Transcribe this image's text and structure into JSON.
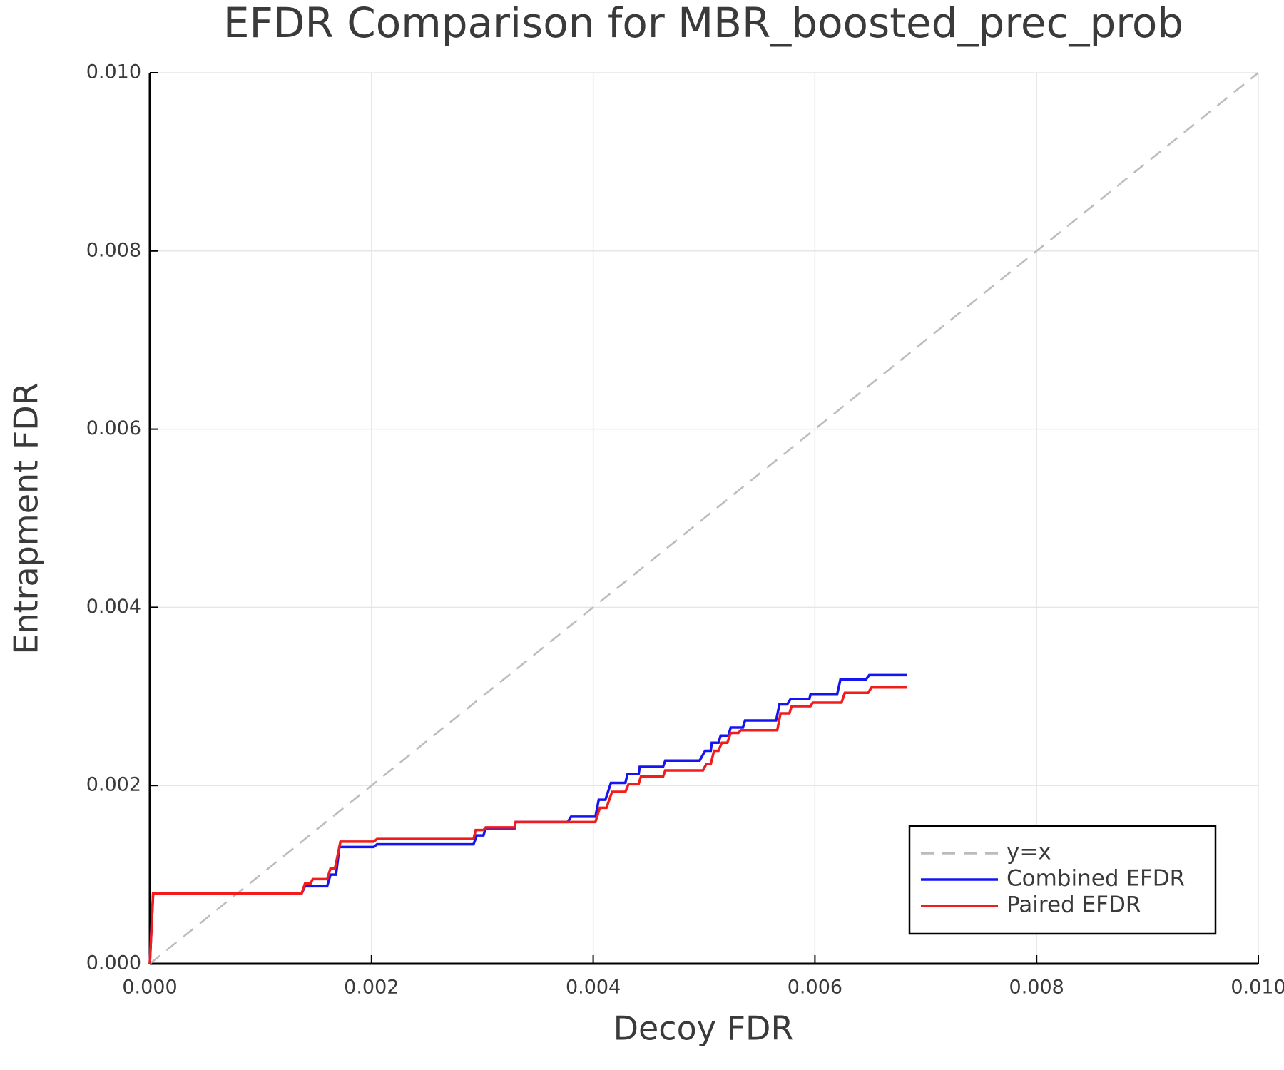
{
  "chart_data": {
    "type": "line",
    "title": "EFDR Comparison for MBR_boosted_prec_prob",
    "xlabel": "Decoy FDR",
    "ylabel": "Entrapment FDR",
    "xlim": [
      0,
      0.01
    ],
    "ylim": [
      0,
      0.01
    ],
    "xticks": [
      {
        "value": 0,
        "label": "0.000"
      },
      0.002,
      0.004,
      0.006,
      0.008,
      {
        "value": 0.01,
        "label": "0.010"
      }
    ],
    "yticks": [
      {
        "value": 0,
        "label": "0.000"
      },
      0.002,
      0.004,
      0.006,
      0.008,
      {
        "value": 0.01,
        "label": "0.010"
      }
    ],
    "grid": true,
    "legend": "lower right",
    "series": [
      {
        "name": "y=x",
        "color": "#bbbbbb",
        "linestyle": "dashed",
        "x": [
          0,
          0.01
        ],
        "values": [
          0,
          0.01
        ]
      },
      {
        "name": "Combined EFDR",
        "color": "#1515f2",
        "linestyle": "solid",
        "x": [
          0,
          3e-05,
          0.00137,
          0.0014,
          0.0016,
          0.00163,
          0.00168,
          0.00171,
          0.00202,
          0.00205,
          0.00292,
          0.00295,
          0.00301,
          0.00303,
          0.00329,
          0.0033,
          0.00377,
          0.0038,
          0.00402,
          0.00405,
          0.00411,
          0.00416,
          0.00429,
          0.00431,
          0.00441,
          0.00442,
          0.00463,
          0.00465,
          0.00496,
          0.00501,
          0.00506,
          0.00507,
          0.00513,
          0.00515,
          0.00522,
          0.00524,
          0.00535,
          0.00537,
          0.00565,
          0.00568,
          0.00575,
          0.00578,
          0.00595,
          0.00596,
          0.0062,
          0.00623,
          0.00646,
          0.00649,
          0.00683
        ],
        "values": [
          0,
          0.00079,
          0.00079,
          0.00087,
          0.00087,
          0.001,
          0.001,
          0.00131,
          0.00131,
          0.00134,
          0.00134,
          0.00144,
          0.00144,
          0.00152,
          0.00152,
          0.00159,
          0.00159,
          0.00165,
          0.00165,
          0.00184,
          0.00184,
          0.00203,
          0.00203,
          0.00213,
          0.00213,
          0.00221,
          0.00221,
          0.00228,
          0.00228,
          0.00239,
          0.00239,
          0.00248,
          0.00248,
          0.00256,
          0.00256,
          0.00265,
          0.00265,
          0.00273,
          0.00273,
          0.00291,
          0.00291,
          0.00297,
          0.00297,
          0.00302,
          0.00302,
          0.00319,
          0.00319,
          0.00324,
          0.00324
        ]
      },
      {
        "name": "Paired EFDR",
        "color": "#f21c1c",
        "linestyle": "solid",
        "x": [
          0,
          3e-05,
          0.00137,
          0.0014,
          0.00145,
          0.00147,
          0.0016,
          0.00163,
          0.00167,
          0.00172,
          0.00202,
          0.00205,
          0.00292,
          0.00294,
          0.00301,
          0.00303,
          0.00329,
          0.0033,
          0.00402,
          0.00406,
          0.00412,
          0.00417,
          0.00429,
          0.00432,
          0.00441,
          0.00443,
          0.00463,
          0.00465,
          0.00499,
          0.00502,
          0.00506,
          0.00509,
          0.00513,
          0.00516,
          0.00521,
          0.00524,
          0.00531,
          0.00533,
          0.00566,
          0.00569,
          0.00577,
          0.00579,
          0.00596,
          0.00598,
          0.00624,
          0.00627,
          0.00648,
          0.00651,
          0.00683
        ],
        "values": [
          0,
          0.00079,
          0.00079,
          0.0009,
          0.0009,
          0.00095,
          0.00095,
          0.00107,
          0.00107,
          0.00137,
          0.00137,
          0.0014,
          0.0014,
          0.0015,
          0.0015,
          0.00153,
          0.00153,
          0.00159,
          0.00159,
          0.00175,
          0.00175,
          0.00193,
          0.00193,
          0.00202,
          0.00202,
          0.0021,
          0.0021,
          0.00217,
          0.00217,
          0.00224,
          0.00224,
          0.00239,
          0.00239,
          0.00248,
          0.00248,
          0.00259,
          0.00259,
          0.00262,
          0.00262,
          0.00281,
          0.00281,
          0.00289,
          0.00289,
          0.00293,
          0.00293,
          0.00304,
          0.00304,
          0.0031,
          0.0031
        ]
      }
    ]
  }
}
